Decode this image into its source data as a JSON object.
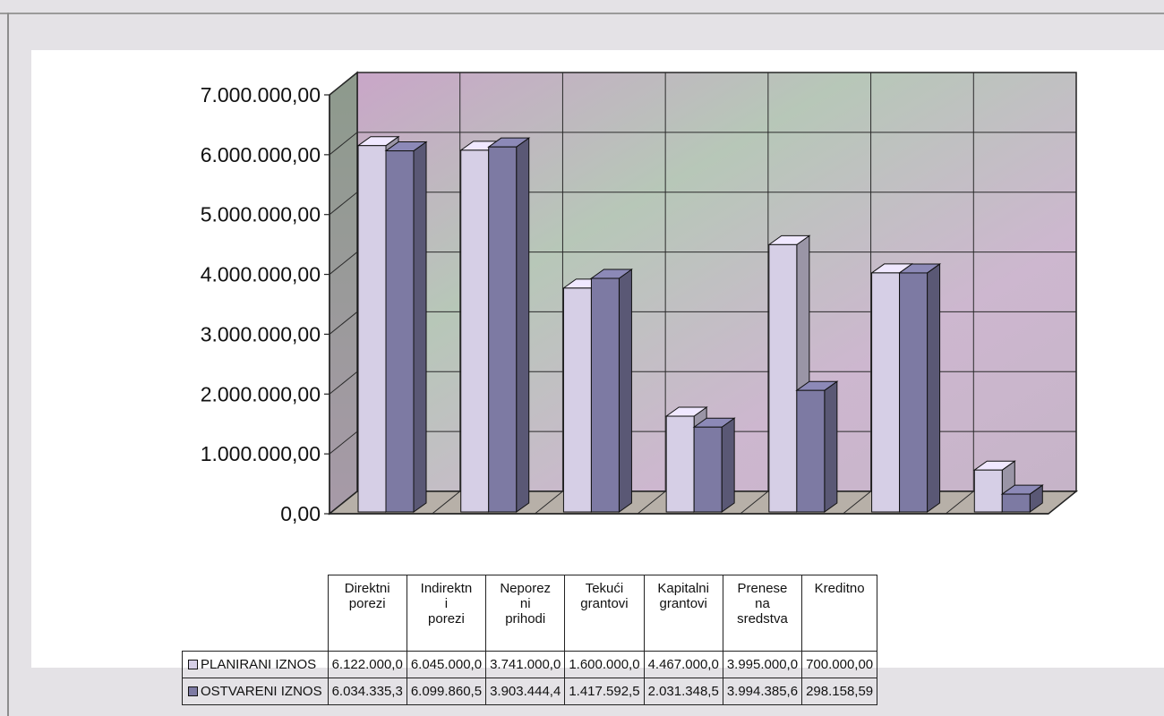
{
  "chart_data": {
    "type": "bar",
    "title": "",
    "xlabel": "",
    "ylabel": "",
    "ylim": [
      0,
      7000000
    ],
    "yticks": [
      "0,00",
      "1.000.000,00",
      "2.000.000,00",
      "3.000.000,00",
      "4.000.000,00",
      "5.000.000,00",
      "6.000.000,00",
      "7.000.000,00"
    ],
    "grid": true,
    "style": "3d-clustered",
    "categories": [
      [
        "Direktni",
        "porezi"
      ],
      [
        "Indirektn",
        "i",
        "porezi"
      ],
      [
        "Neporez",
        "ni",
        "prihodi"
      ],
      [
        "Tekući",
        "grantovi"
      ],
      [
        "Kapitalni",
        "grantovi"
      ],
      [
        "Prenese",
        "na",
        "sredstva"
      ],
      [
        "Kreditno"
      ]
    ],
    "series": [
      {
        "name": "PLANIRANI IZNOS",
        "color": "#d6cfe6",
        "values": [
          6122000.0,
          6045000.0,
          3741000.0,
          1600000.0,
          4467000.0,
          3995000.0,
          700000.0
        ],
        "labels": [
          "6.122.000,0",
          "6.045.000,0",
          "3.741.000,0",
          "1.600.000,0",
          "4.467.000,0",
          "3.995.000,0",
          "700.000,00"
        ]
      },
      {
        "name": "OSTVARENI IZNOS",
        "color": "#7d7aa3",
        "values": [
          6034335.3,
          6099860.5,
          3903444.4,
          1417592.5,
          2031348.5,
          3994385.6,
          298158.59
        ],
        "labels": [
          "6.034.335,3",
          "6.099.860,5",
          "3.903.444,4",
          "1.417.592,5",
          "2.031.348,5",
          "3.994.385,6",
          "298.158,59"
        ]
      }
    ]
  }
}
